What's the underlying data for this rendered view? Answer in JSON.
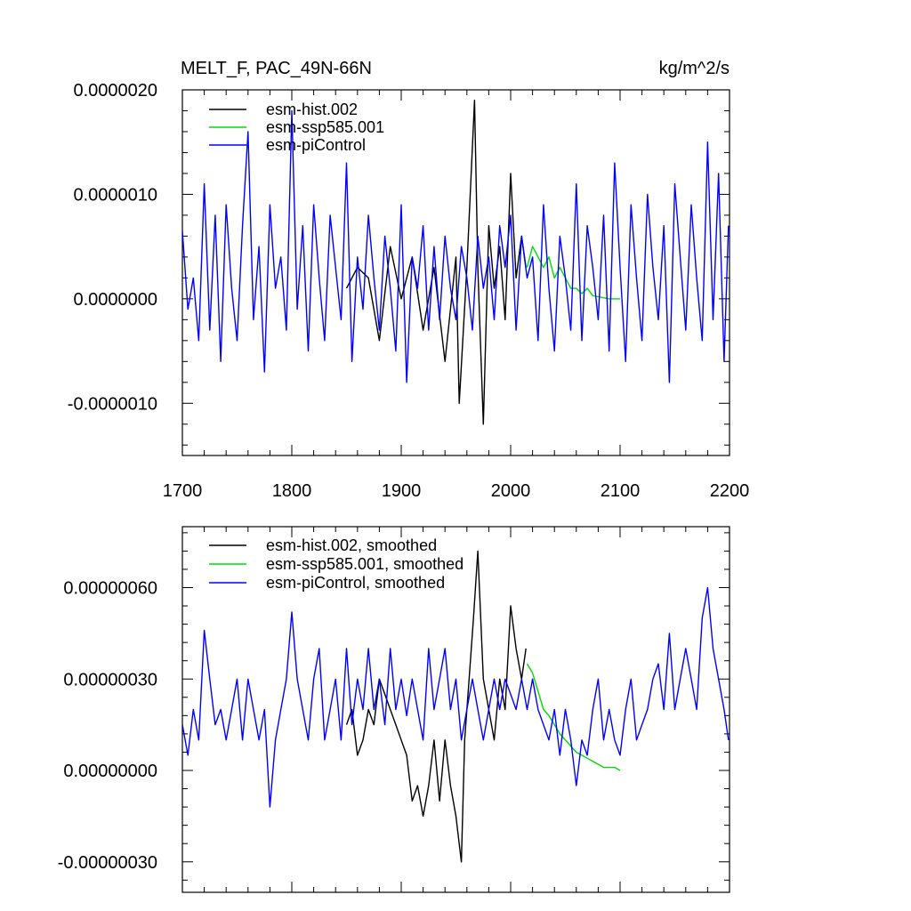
{
  "chart_data": [
    {
      "type": "line",
      "title": "MELT_F, PAC_49N-66N",
      "units": "kg/m^2/s",
      "xlabel": "",
      "ylabel": "",
      "xlim": [
        1700,
        2200
      ],
      "ylim": [
        -1.5e-06,
        2e-06
      ],
      "x_ticks": [
        1700,
        1800,
        1900,
        2000,
        2100,
        2200
      ],
      "x_tick_labels": [
        "1700",
        "1800",
        "1900",
        "2000",
        "2100",
        "2200"
      ],
      "y_ticks": [
        -1e-06,
        0,
        1e-06,
        2e-06
      ],
      "y_tick_labels": [
        "-0.0000010",
        "0.0000000",
        "0.0000010",
        "0.0000020"
      ],
      "grid": false,
      "legend_position": "top-left",
      "series": [
        {
          "name": "esm-hist.002",
          "color": "#000000",
          "x": [
            1850,
            1860,
            1870,
            1880,
            1890,
            1900,
            1910,
            1920,
            1930,
            1940,
            1950,
            1953,
            1960,
            1967,
            1970,
            1975,
            1980,
            1985,
            1990,
            1995,
            2000,
            2005,
            2010,
            2014
          ],
          "y": [
            1e-07,
            3e-07,
            2e-07,
            -4e-07,
            5e-07,
            0.0,
            4e-07,
            -3e-07,
            3e-07,
            -6e-07,
            4e-07,
            -1e-06,
            3e-07,
            1.9e-06,
            3e-07,
            -1.2e-06,
            7e-07,
            1e-07,
            5e-07,
            -2e-07,
            1.2e-06,
            2e-07,
            6e-07,
            3e-07
          ]
        },
        {
          "name": "esm-ssp585.001",
          "color": "#00dd00",
          "x": [
            2015,
            2020,
            2025,
            2030,
            2035,
            2040,
            2045,
            2050,
            2055,
            2060,
            2065,
            2070,
            2075,
            2080,
            2085,
            2090,
            2095,
            2100
          ],
          "y": [
            3e-07,
            5e-07,
            4e-07,
            3e-07,
            4e-07,
            2e-07,
            3e-07,
            2e-07,
            1e-07,
            1e-07,
            5e-08,
            1e-07,
            3e-08,
            2e-08,
            1e-08,
            0.0,
            0.0,
            0.0
          ]
        },
        {
          "name": "esm-piControl",
          "color": "#0000ff",
          "x": [
            1700,
            1705,
            1710,
            1715,
            1720,
            1725,
            1730,
            1735,
            1740,
            1745,
            1750,
            1755,
            1760,
            1765,
            1770,
            1775,
            1780,
            1785,
            1790,
            1795,
            1800,
            1805,
            1810,
            1815,
            1820,
            1825,
            1830,
            1835,
            1840,
            1845,
            1850,
            1855,
            1860,
            1865,
            1870,
            1875,
            1880,
            1885,
            1890,
            1895,
            1900,
            1905,
            1910,
            1915,
            1920,
            1925,
            1930,
            1935,
            1940,
            1945,
            1950,
            1955,
            1960,
            1965,
            1970,
            1975,
            1980,
            1985,
            1990,
            1995,
            2000,
            2005,
            2010,
            2015,
            2020,
            2025,
            2030,
            2035,
            2040,
            2045,
            2050,
            2055,
            2060,
            2065,
            2070,
            2075,
            2080,
            2085,
            2090,
            2095,
            2100,
            2105,
            2110,
            2115,
            2120,
            2125,
            2130,
            2135,
            2140,
            2145,
            2150,
            2155,
            2160,
            2165,
            2170,
            2175,
            2180,
            2185,
            2190,
            2195,
            2199
          ],
          "y": [
            6.5e-07,
            -1e-07,
            2e-07,
            -4e-07,
            1.1e-06,
            -3e-07,
            8e-07,
            -6e-07,
            9e-07,
            1e-07,
            -4e-07,
            7e-07,
            1.6e-06,
            -2e-07,
            5e-07,
            -7e-07,
            9e-07,
            1e-07,
            4e-07,
            -3e-07,
            1.8e-06,
            -1e-07,
            7e-07,
            -5e-07,
            9e-07,
            2e-07,
            -4e-07,
            8e-07,
            3e-07,
            -2e-07,
            1.3e-06,
            -6e-07,
            4e-07,
            -1e-07,
            8e-07,
            2e-07,
            -3e-07,
            6e-07,
            1e-07,
            -5e-07,
            9e-07,
            -8e-07,
            4e-07,
            1e-07,
            7e-07,
            -3e-07,
            5e-07,
            -2e-07,
            6e-07,
            1e-07,
            -2e-07,
            5e-07,
            2e-07,
            -3e-07,
            6e-07,
            1e-07,
            4e-07,
            -2e-07,
            7e-07,
            3e-07,
            8e-07,
            -3e-07,
            6e-07,
            2e-07,
            4e-07,
            -4e-07,
            9e-07,
            1e-07,
            -5e-07,
            6e-07,
            2e-07,
            -3e-07,
            1.1e-06,
            -4e-07,
            7e-07,
            3e-07,
            -2e-07,
            8e-07,
            -5e-07,
            1.3e-06,
            3e-07,
            -6e-07,
            9e-07,
            2e-07,
            -4e-07,
            1e-06,
            3e-07,
            -2e-07,
            7e-07,
            -8e-07,
            1.1e-06,
            4e-07,
            -3e-07,
            9e-07,
            2e-07,
            -4e-07,
            1.5e-06,
            -2e-07,
            1.2e-06,
            -6e-07,
            7e-07
          ]
        }
      ]
    },
    {
      "type": "line",
      "title": "",
      "xlabel": "",
      "ylabel": "",
      "xlim": [
        1700,
        2200
      ],
      "ylim": [
        -4e-07,
        8e-07
      ],
      "x_ticks": [
        1700,
        1800,
        1900,
        2000,
        2100,
        2200
      ],
      "x_tick_labels": [
        "",
        "",
        "",
        "",
        "",
        ""
      ],
      "y_ticks": [
        -3e-07,
        0,
        3e-07,
        6e-07
      ],
      "y_tick_labels": [
        "-0.00000030",
        "0.00000000",
        "0.00000030",
        "0.00000060"
      ],
      "grid": false,
      "legend_position": "top-left",
      "series": [
        {
          "name": "esm-hist.002, smoothed",
          "color": "#000000",
          "x": [
            1850,
            1855,
            1860,
            1865,
            1870,
            1875,
            1880,
            1885,
            1890,
            1895,
            1900,
            1905,
            1910,
            1915,
            1920,
            1925,
            1930,
            1935,
            1940,
            1945,
            1950,
            1955,
            1958,
            1962,
            1966,
            1970,
            1975,
            1980,
            1985,
            1990,
            1995,
            2000,
            2005,
            2010,
            2014
          ],
          "y": [
            1.5e-07,
            2e-07,
            5e-08,
            1e-07,
            2e-07,
            1.5e-07,
            3e-07,
            2.5e-07,
            2e-07,
            1.5e-07,
            1e-07,
            5e-08,
            -1e-07,
            -5e-08,
            -1.5e-07,
            -5e-08,
            1e-07,
            -1e-07,
            1e-07,
            -5e-08,
            -1.5e-07,
            -3e-07,
            1e-07,
            3e-07,
            5e-07,
            7.2e-07,
            3e-07,
            2e-07,
            1e-07,
            3e-07,
            2e-07,
            5.4e-07,
            4e-07,
            3e-07,
            4e-07
          ]
        },
        {
          "name": "esm-ssp585.001, smoothed",
          "color": "#00dd00",
          "x": [
            2015,
            2020,
            2025,
            2030,
            2035,
            2040,
            2045,
            2050,
            2055,
            2060,
            2065,
            2070,
            2075,
            2080,
            2085,
            2090,
            2095,
            2100
          ],
          "y": [
            3.5e-07,
            3.2e-07,
            2.6e-07,
            2e-07,
            1.8e-07,
            1.5e-07,
            1.2e-07,
            1e-07,
            8e-08,
            6e-08,
            5e-08,
            4e-08,
            3e-08,
            2e-08,
            1e-08,
            1e-08,
            1e-08,
            0.0
          ]
        },
        {
          "name": "esm-piControl, smoothed",
          "color": "#0000ff",
          "x": [
            1700,
            1705,
            1710,
            1715,
            1720,
            1725,
            1730,
            1735,
            1740,
            1745,
            1750,
            1755,
            1760,
            1765,
            1770,
            1775,
            1780,
            1785,
            1790,
            1795,
            1800,
            1805,
            1810,
            1815,
            1820,
            1825,
            1830,
            1835,
            1840,
            1845,
            1850,
            1855,
            1860,
            1865,
            1870,
            1875,
            1880,
            1885,
            1890,
            1895,
            1900,
            1905,
            1910,
            1915,
            1920,
            1925,
            1930,
            1935,
            1940,
            1945,
            1950,
            1955,
            1960,
            1965,
            1970,
            1975,
            1980,
            1985,
            1990,
            1995,
            2000,
            2005,
            2010,
            2015,
            2020,
            2025,
            2030,
            2035,
            2040,
            2045,
            2050,
            2055,
            2060,
            2065,
            2070,
            2075,
            2080,
            2085,
            2090,
            2095,
            2100,
            2105,
            2110,
            2115,
            2120,
            2125,
            2130,
            2135,
            2140,
            2145,
            2150,
            2155,
            2160,
            2165,
            2170,
            2175,
            2180,
            2185,
            2190,
            2195,
            2199
          ],
          "y": [
            1.5e-07,
            5e-08,
            2e-07,
            1e-07,
            4.6e-07,
            3e-07,
            1.5e-07,
            2e-07,
            1e-07,
            2e-07,
            3e-07,
            1e-07,
            3e-07,
            2e-07,
            1e-07,
            2e-07,
            -1.2e-07,
            1e-07,
            2e-07,
            3e-07,
            5.2e-07,
            3e-07,
            2e-07,
            1e-07,
            3e-07,
            4e-07,
            1e-07,
            2e-07,
            3e-07,
            1e-07,
            4e-07,
            1.5e-07,
            3e-07,
            2e-07,
            4e-07,
            2e-07,
            3e-07,
            1.5e-07,
            4e-07,
            2e-07,
            3e-07,
            1.8e-07,
            3e-07,
            2e-07,
            1e-07,
            4e-07,
            2e-07,
            3e-07,
            4e-07,
            2e-07,
            3e-07,
            1e-07,
            2e-07,
            3e-07,
            2e-07,
            1e-07,
            2e-07,
            3e-07,
            2e-07,
            3e-07,
            2.5e-07,
            2e-07,
            3e-07,
            2e-07,
            3e-07,
            2e-07,
            1.5e-07,
            1e-07,
            2e-07,
            5e-08,
            2e-07,
            1e-07,
            -5e-08,
            1e-07,
            5e-08,
            2e-07,
            3e-07,
            1e-07,
            2e-07,
            1e-07,
            5e-08,
            2e-07,
            3e-07,
            1e-07,
            1.5e-07,
            2e-07,
            3e-07,
            3.5e-07,
            2e-07,
            4.5e-07,
            2e-07,
            3e-07,
            4e-07,
            3e-07,
            2e-07,
            5e-07,
            6e-07,
            4e-07,
            3e-07,
            2e-07,
            1e-07
          ]
        }
      ]
    }
  ]
}
